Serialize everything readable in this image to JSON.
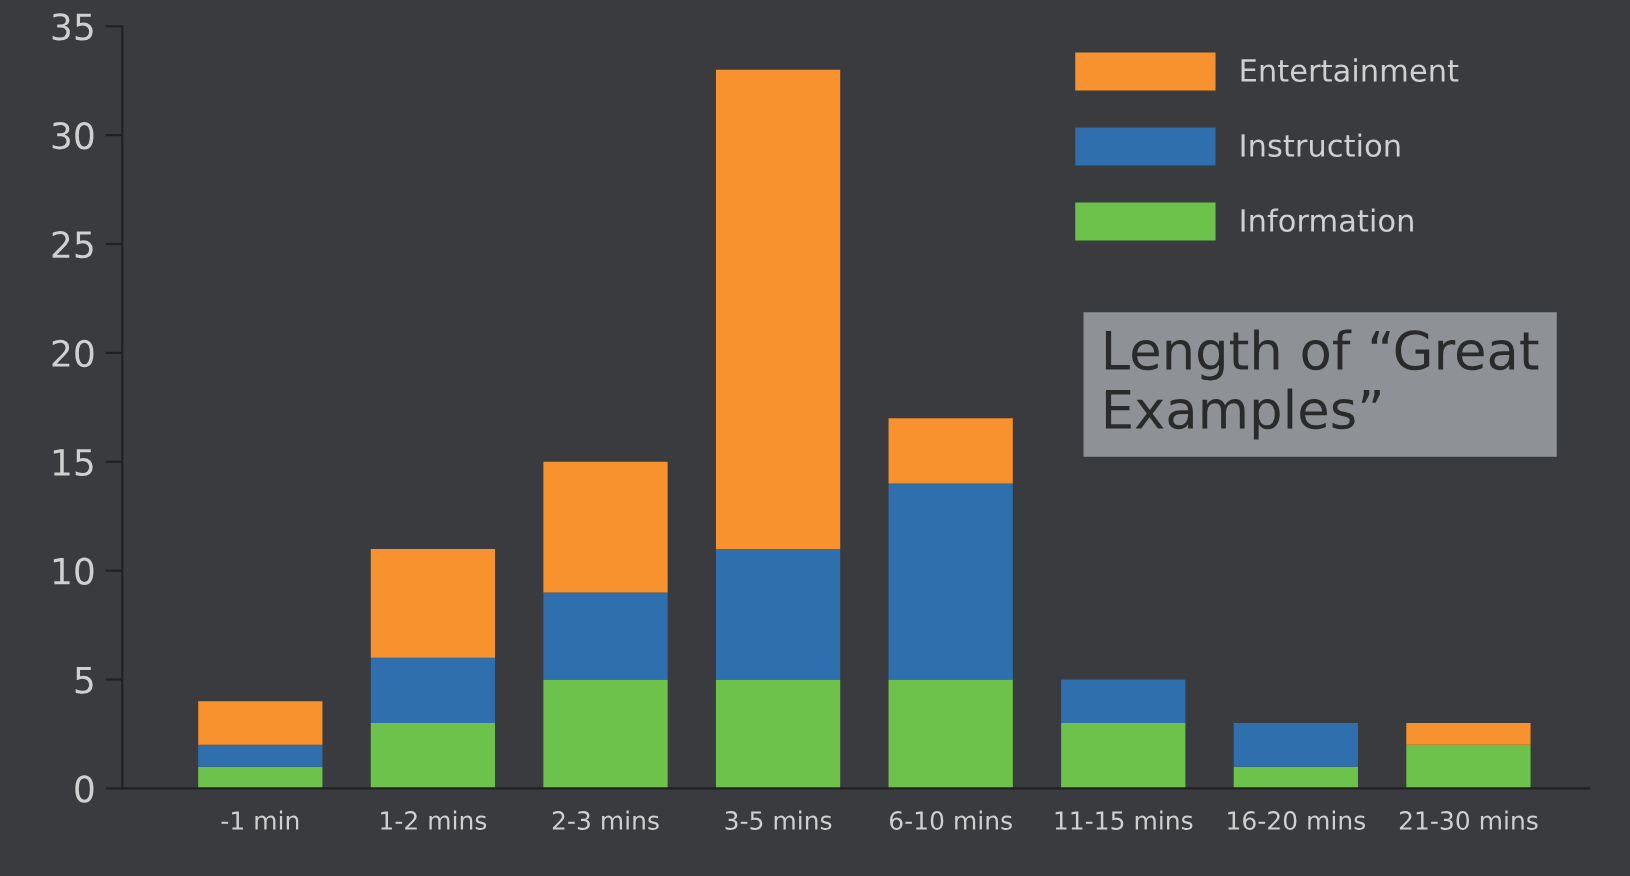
{
  "chart_data": {
    "type": "bar",
    "stacked": true,
    "title": "Length of “Great Examples”",
    "categories": [
      "-1 min",
      "1-2 mins",
      "2-3 mins",
      "3-5 mins",
      "6-10 mins",
      "11-15 mins",
      "16-20 mins",
      "21-30 mins"
    ],
    "series": [
      {
        "name": "Information",
        "color": "#6cc24a",
        "values": [
          1,
          3,
          5,
          5,
          5,
          3,
          1,
          2
        ]
      },
      {
        "name": "Instruction",
        "color": "#2f6fad",
        "values": [
          1,
          3,
          4,
          6,
          9,
          2,
          2,
          0
        ]
      },
      {
        "name": "Entertainment",
        "color": "#f7922f",
        "values": [
          2,
          5,
          6,
          22,
          3,
          0,
          0,
          1
        ]
      }
    ],
    "ylim": [
      0,
      35
    ],
    "yticks": [
      0,
      5,
      10,
      15,
      20,
      25,
      30,
      35
    ],
    "grid": false,
    "legend": "top right"
  }
}
